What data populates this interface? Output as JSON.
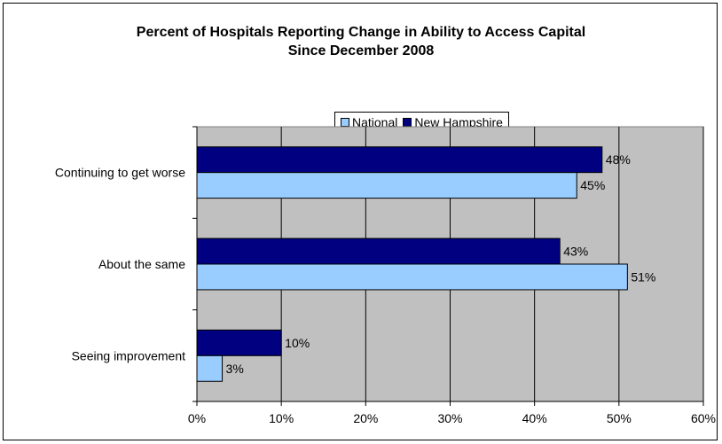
{
  "chart_data": {
    "type": "bar",
    "orientation": "horizontal",
    "title_lines": [
      "Percent of Hospitals Reporting Change in Ability to Access Capital",
      "Since December 2008"
    ],
    "categories": [
      "Continuing to get worse",
      "About the same",
      "Seeing improvement"
    ],
    "series": [
      {
        "name": "New Hampshire",
        "color": "#000080",
        "values": [
          48,
          43,
          10
        ],
        "labels": [
          "48%",
          "43%",
          "10%"
        ]
      },
      {
        "name": "National",
        "color": "#99CCFF",
        "values": [
          45,
          51,
          3
        ],
        "labels": [
          "45%",
          "51%",
          "3%"
        ]
      }
    ],
    "legend_order": [
      "National",
      "New Hampshire"
    ],
    "x_ticks": [
      0,
      10,
      20,
      30,
      40,
      50,
      60
    ],
    "x_tick_labels": [
      "0%",
      "10%",
      "20%",
      "30%",
      "40%",
      "50%",
      "60%"
    ],
    "xlim": [
      0,
      60
    ],
    "grid": true,
    "plot_background": "#C0C0C0",
    "legend_position": "top-center"
  }
}
